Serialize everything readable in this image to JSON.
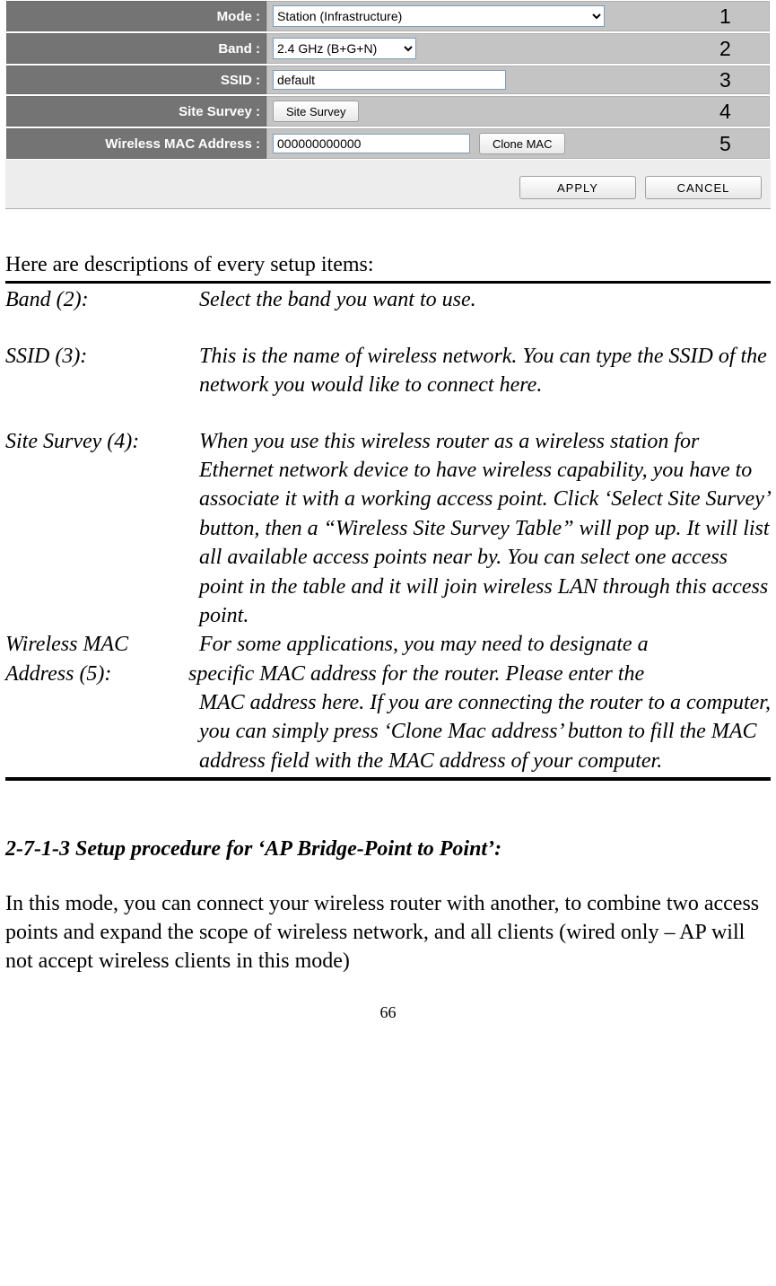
{
  "form": {
    "rows": [
      {
        "label": "Mode :",
        "num": "1"
      },
      {
        "label": "Band :",
        "num": "2"
      },
      {
        "label": "SSID :",
        "num": "3"
      },
      {
        "label": "Site Survey :",
        "num": "4"
      },
      {
        "label": "Wireless MAC Address :",
        "num": "5"
      }
    ],
    "mode_value": "Station (Infrastructure)",
    "band_value": "2.4 GHz (B+G+N)",
    "ssid_value": "default",
    "site_survey_btn": "Site Survey",
    "mac_value": "000000000000",
    "clone_mac_btn": "Clone MAC",
    "apply_btn": "APPLY",
    "cancel_btn": "CANCEL"
  },
  "intro": "Here are descriptions of every setup items:",
  "descriptions": {
    "band_term": "Band (2):",
    "band_def": "Select the band you want to use.",
    "ssid_term": "SSID (3):",
    "ssid_def": "This is the name of wireless network. You can type the SSID of the network you would like to connect here.",
    "survey_term": "Site Survey (4):",
    "survey_def": "When you use this wireless router as a wireless station for Ethernet network device to have wireless capability, you have to associate it with a working access point. Click ‘Select Site Survey’ button, then a “Wireless Site Survey Table” will pop up. It will list all available access points near by. You can select one access point in the table and it will join wireless LAN through this access point.",
    "mac_term1": "Wireless MAC",
    "mac_term2": "Address (5):",
    "mac_def_line1": "For some applications, you may need to designate a",
    "mac_def_line2": "specific MAC address for the router. Please enter the",
    "mac_def_rest": "MAC address here. If you are connecting the router to a computer, you can simply press ‘Clone Mac address’ button to fill the MAC address field with the MAC address of your computer."
  },
  "section": {
    "heading": "2-7-1-3 Setup procedure for ‘AP Bridge-Point to Point’:",
    "body": "In this mode, you can connect your wireless router with another, to combine two access points and expand the scope of wireless network, and all clients (wired only – AP will not accept wireless clients in this mode)"
  },
  "page_number": "66"
}
